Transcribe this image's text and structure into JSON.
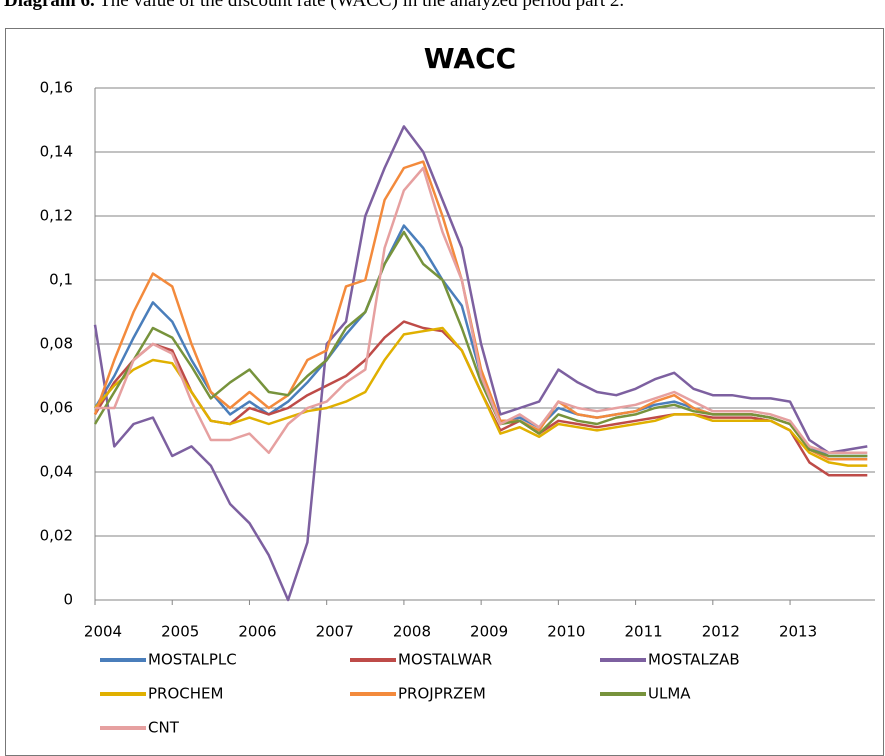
{
  "caption": {
    "label": "Diagram 6.",
    "text": "The value of the discount rate (WACC) in the analyzed period part 2."
  },
  "chart_data": {
    "type": "line",
    "title": "WACC",
    "x": [
      2004,
      2004.25,
      2004.5,
      2004.75,
      2005,
      2005.25,
      2005.5,
      2005.75,
      2006,
      2006.25,
      2006.5,
      2006.75,
      2007,
      2007.25,
      2007.5,
      2007.75,
      2008,
      2008.25,
      2008.5,
      2008.75,
      2009,
      2009.25,
      2009.5,
      2009.75,
      2010,
      2010.25,
      2010.5,
      2010.75,
      2011,
      2011.25,
      2011.5,
      2011.75,
      2012,
      2012.25,
      2012.5,
      2012.75,
      2013,
      2013.25,
      2013.5,
      2013.75,
      2014
    ],
    "series": [
      {
        "name": "MOSTALPLC",
        "color": "#4a7ebb",
        "values": [
          0.06,
          0.07,
          0.082,
          0.093,
          0.087,
          0.075,
          0.065,
          0.058,
          0.062,
          0.058,
          0.062,
          0.068,
          0.075,
          0.083,
          0.09,
          0.105,
          0.117,
          0.11,
          0.1,
          0.092,
          0.07,
          0.055,
          0.057,
          0.054,
          0.06,
          0.058,
          0.057,
          0.058,
          0.059,
          0.061,
          0.062,
          0.06,
          0.058,
          0.058,
          0.058,
          0.057,
          0.055,
          0.048,
          0.045,
          0.045,
          0.045
        ]
      },
      {
        "name": "MOSTALWAR",
        "color": "#be4b48",
        "values": [
          0.058,
          0.068,
          0.075,
          0.08,
          0.078,
          0.065,
          0.056,
          0.055,
          0.06,
          0.058,
          0.06,
          0.064,
          0.067,
          0.07,
          0.075,
          0.082,
          0.087,
          0.085,
          0.084,
          0.078,
          0.065,
          0.053,
          0.056,
          0.052,
          0.056,
          0.055,
          0.054,
          0.055,
          0.056,
          0.057,
          0.058,
          0.058,
          0.057,
          0.057,
          0.057,
          0.056,
          0.053,
          0.043,
          0.039,
          0.039,
          0.039
        ]
      },
      {
        "name": "MOSTALZAB",
        "color": "#7d60a0",
        "values": [
          0.086,
          0.048,
          0.055,
          0.057,
          0.045,
          0.048,
          0.042,
          0.03,
          0.024,
          0.014,
          0.0,
          0.018,
          0.08,
          0.087,
          0.12,
          0.135,
          0.148,
          0.14,
          0.125,
          0.11,
          0.08,
          0.058,
          0.06,
          0.062,
          0.072,
          0.068,
          0.065,
          0.064,
          0.066,
          0.069,
          0.071,
          0.066,
          0.064,
          0.064,
          0.063,
          0.063,
          0.062,
          0.05,
          0.046,
          0.047,
          0.048
        ]
      },
      {
        "name": "PROCHEM",
        "color": "#e0b000",
        "values": [
          0.06,
          0.067,
          0.072,
          0.075,
          0.074,
          0.065,
          0.056,
          0.055,
          0.057,
          0.055,
          0.057,
          0.059,
          0.06,
          0.062,
          0.065,
          0.075,
          0.083,
          0.084,
          0.085,
          0.078,
          0.065,
          0.052,
          0.054,
          0.051,
          0.055,
          0.054,
          0.053,
          0.054,
          0.055,
          0.056,
          0.058,
          0.058,
          0.056,
          0.056,
          0.056,
          0.056,
          0.053,
          0.046,
          0.043,
          0.042,
          0.042
        ]
      },
      {
        "name": "PROJPRZEM",
        "color": "#f38a3c",
        "values": [
          0.058,
          0.075,
          0.09,
          0.102,
          0.098,
          0.08,
          0.065,
          0.06,
          0.065,
          0.06,
          0.064,
          0.075,
          0.078,
          0.098,
          0.1,
          0.125,
          0.135,
          0.137,
          0.12,
          0.1,
          0.072,
          0.056,
          0.056,
          0.053,
          0.062,
          0.058,
          0.057,
          0.058,
          0.059,
          0.062,
          0.064,
          0.06,
          0.058,
          0.058,
          0.058,
          0.057,
          0.055,
          0.047,
          0.044,
          0.044,
          0.044
        ]
      },
      {
        "name": "ULMA",
        "color": "#77933c",
        "values": [
          0.055,
          0.065,
          0.075,
          0.085,
          0.082,
          0.073,
          0.063,
          0.068,
          0.072,
          0.065,
          0.064,
          0.07,
          0.075,
          0.085,
          0.09,
          0.105,
          0.115,
          0.105,
          0.1,
          0.085,
          0.068,
          0.055,
          0.056,
          0.052,
          0.058,
          0.056,
          0.055,
          0.057,
          0.058,
          0.06,
          0.061,
          0.059,
          0.058,
          0.058,
          0.058,
          0.057,
          0.055,
          0.047,
          0.045,
          0.045,
          0.045
        ]
      },
      {
        "name": "CNT",
        "color": "#e6a0a0",
        "values": [
          0.06,
          0.06,
          0.075,
          0.08,
          0.077,
          0.062,
          0.05,
          0.05,
          0.052,
          0.046,
          0.055,
          0.06,
          0.062,
          0.068,
          0.072,
          0.11,
          0.128,
          0.135,
          0.115,
          0.1,
          0.07,
          0.055,
          0.058,
          0.054,
          0.062,
          0.06,
          0.059,
          0.06,
          0.061,
          0.063,
          0.065,
          0.062,
          0.059,
          0.059,
          0.059,
          0.058,
          0.056,
          0.048,
          0.046,
          0.046,
          0.046
        ]
      }
    ],
    "xlim": [
      2004,
      2014.1
    ],
    "xticks": [
      2004,
      2005,
      2006,
      2007,
      2008,
      2009,
      2010,
      2011,
      2012,
      2013
    ],
    "ylim": [
      0,
      0.16
    ],
    "yticks": [
      0,
      {
        "value": 0.02,
        "label": "0,02"
      },
      {
        "value": 0.04,
        "label": "0,04"
      },
      {
        "value": 0.06,
        "label": "0,06"
      },
      {
        "value": 0.08,
        "label": "0,08"
      },
      {
        "value": 0.1,
        "label": "0,1"
      },
      {
        "value": 0.12,
        "label": "0,12"
      },
      {
        "value": 0.14,
        "label": "0,14"
      },
      {
        "value": 0.16,
        "label": "0,16"
      }
    ],
    "grid": true,
    "legend": "bottom"
  }
}
